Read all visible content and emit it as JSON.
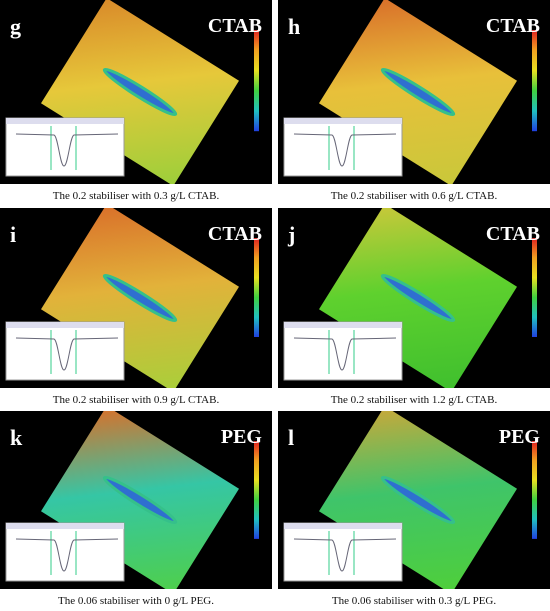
{
  "panels": [
    {
      "letter": "g",
      "label": "CTAB",
      "caption": "The 0.2 stabiliser with 0.3 g/L CTAB."
    },
    {
      "letter": "h",
      "label": "CTAB",
      "caption": "The 0.2 stabiliser with 0.6 g/L CTAB."
    },
    {
      "letter": "i",
      "label": "CTAB",
      "caption": "The 0.2 stabiliser with 0.9 g/L CTAB."
    },
    {
      "letter": "j",
      "label": "CTAB",
      "caption": "The 0.2 stabiliser with 1.2 g/L CTAB."
    },
    {
      "letter": "k",
      "label": "PEG",
      "caption": "The 0.06 stabiliser with 0 g/L PEG."
    },
    {
      "letter": "l",
      "label": "PEG",
      "caption": "The 0.06 stabiliser with 0.3 g/L PEG."
    }
  ]
}
